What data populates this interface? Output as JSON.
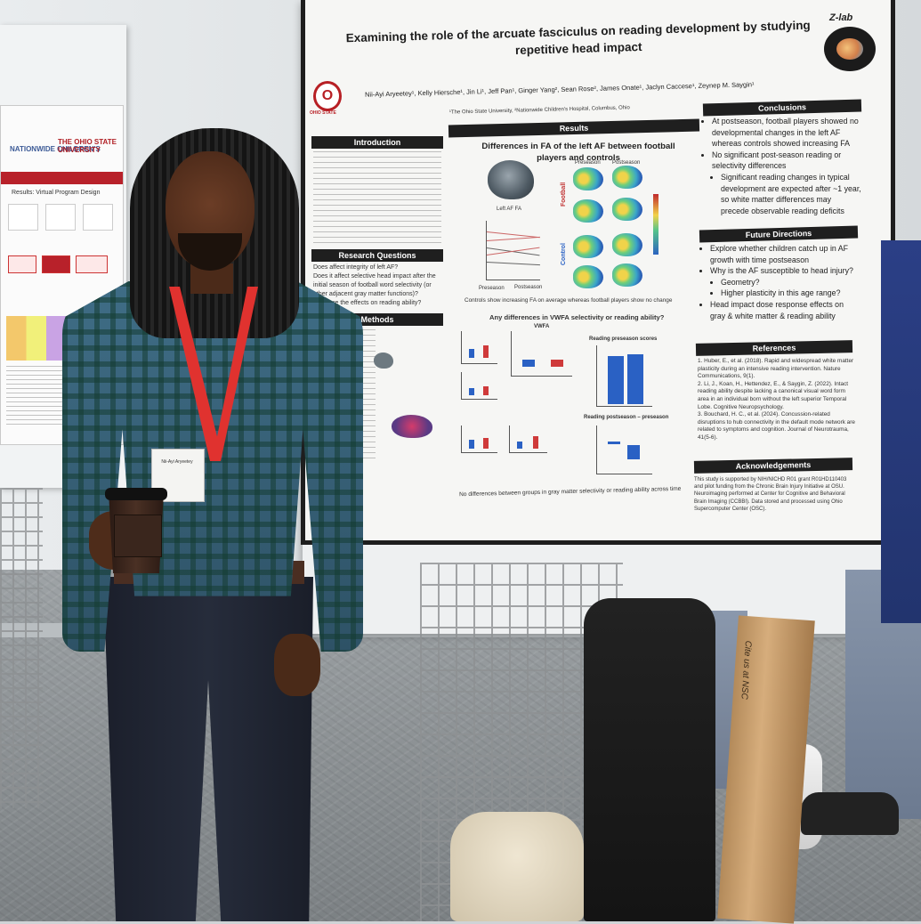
{
  "main_poster": {
    "title_line1": "Examining the role of the arcuate fasciculus on reading development by studying",
    "title_line2": "repetitive head impact",
    "authors": "Nii-Ayi Aryeetey¹, Kelly Hiersche¹, Jin Li¹, Jeff Pan¹, Ginger Yang², Sean Rose², James Onate¹, Jaclyn Caccese¹, Zeynep M. Saygin¹",
    "affiliation": "¹The Ohio State University, ²Nationwide Children's Hospital, Columbus, Ohio",
    "lab_label": "Z-lab",
    "university_logo_text": "OHIO STATE",
    "logo_letter": "O",
    "sections": {
      "introduction": "Introduction",
      "research_questions": "Research Questions",
      "methods": "Methods",
      "results": "Results",
      "conclusions": "Conclusions",
      "future_directions": "Future Directions",
      "references": "References",
      "acknowledgements": "Acknowledgements"
    },
    "results": {
      "subtitle": "Differences in FA of the left AF between football players and controls",
      "brain_label": "Left AF FA",
      "preseason": "Preseason",
      "postseason": "Postseason",
      "football": "Football",
      "control": "Control",
      "fa_caption": "Controls show increasing FA on average whereas football players show no change",
      "question": "Any differences in VWFA selectivity or reading ability?",
      "vwfa": "VWFA",
      "reading_pre": "Reading preseason scores",
      "reading_diff": "Reading postseason – preseason",
      "bottom_caption": "No differences between groups in gray matter selectivity or reading ability across time"
    },
    "research_questions_text": [
      "Does affect integrity of left AF?",
      "Does it affect selective head impact after the initial season of football word selectivity (or other adjacent gray matter functions)?",
      "What are the effects on reading ability?"
    ],
    "conclusions": [
      "At postseason, football players showed no developmental changes in the left AF whereas controls showed increasing FA",
      "No significant post-season reading or selectivity differences",
      "Significant reading changes in typical development are expected after ~1 year, so white matter differences may precede observable reading deficits"
    ],
    "future_directions": [
      "Explore whether children catch up in AF growth with time postseason",
      "Why is the AF susceptible to head injury?",
      "Geometry?",
      "Higher plasticity in this age range?",
      "Head impact dose response effects on gray & white matter & reading ability"
    ],
    "references": [
      "1. Huber, E., et al. (2018). Rapid and widespread white matter plasticity during an intensive reading intervention. Nature Communications, 9(1).",
      "2. Li, J., Koan, H., Hettendez, E., & Saygin, Z. (2022). Intact reading ability despite lacking a canonical visual word form area in an individual born without the left superior Temporal Lobe. Cognitive Neuropsychology.",
      "3. Bouchard, H. C., et al. (2024). Concussion-related disruptions to hub connectivity in the default mode network are related to symptoms and cognition. Journal of Neurotrauma, 41(5-6)."
    ],
    "acknowledgements": "This study is supported by NIH/NICHD R01 grant R01HD110403 and pilot funding from the Chronic Brain Injury Initiative at OSU. Neuroimaging performed at Center for Cognitive and Behavioral Brain Imaging (CCBBI). Data stored and processed using Ohio Supercomputer Center (OSC)."
  },
  "left_poster": {
    "logo1": "NATIONWIDE CHILDREN'S",
    "logo2": "THE OHIO STATE UNIVERSITY",
    "results_label": "Results: Virtual Program Design"
  },
  "badge_text": "Nii-Ayi Aryeetey",
  "tube_text": "Cite us at NSC"
}
